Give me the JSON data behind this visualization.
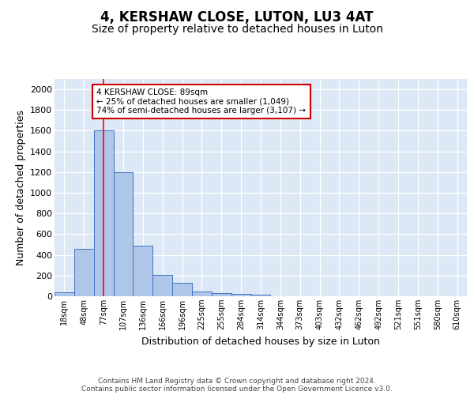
{
  "title": "4, KERSHAW CLOSE, LUTON, LU3 4AT",
  "subtitle": "Size of property relative to detached houses in Luton",
  "xlabel": "Distribution of detached houses by size in Luton",
  "ylabel": "Number of detached properties",
  "bin_labels": [
    "18sqm",
    "48sqm",
    "77sqm",
    "107sqm",
    "136sqm",
    "166sqm",
    "196sqm",
    "225sqm",
    "255sqm",
    "284sqm",
    "314sqm",
    "344sqm",
    "373sqm",
    "403sqm",
    "432sqm",
    "462sqm",
    "492sqm",
    "521sqm",
    "551sqm",
    "580sqm",
    "610sqm"
  ],
  "bar_heights": [
    35,
    460,
    1600,
    1200,
    490,
    210,
    130,
    45,
    28,
    20,
    15,
    0,
    0,
    0,
    0,
    0,
    0,
    0,
    0,
    0,
    0
  ],
  "bar_color": "#aec6e8",
  "bar_edge_color": "#4472c4",
  "background_color": "#dce8f5",
  "red_line_x": 2,
  "annotation_text": "4 KERSHAW CLOSE: 89sqm\n← 25% of detached houses are smaller (1,049)\n74% of semi-detached houses are larger (3,107) →",
  "annotation_box_color": "#ffffff",
  "annotation_box_edge_color": "#cc0000",
  "ylim": [
    0,
    2100
  ],
  "yticks": [
    0,
    200,
    400,
    600,
    800,
    1000,
    1200,
    1400,
    1600,
    1800,
    2000
  ],
  "footer_text": "Contains HM Land Registry data © Crown copyright and database right 2024.\nContains public sector information licensed under the Open Government Licence v3.0.",
  "title_fontsize": 12,
  "subtitle_fontsize": 10,
  "ylabel_fontsize": 9,
  "xlabel_fontsize": 9
}
